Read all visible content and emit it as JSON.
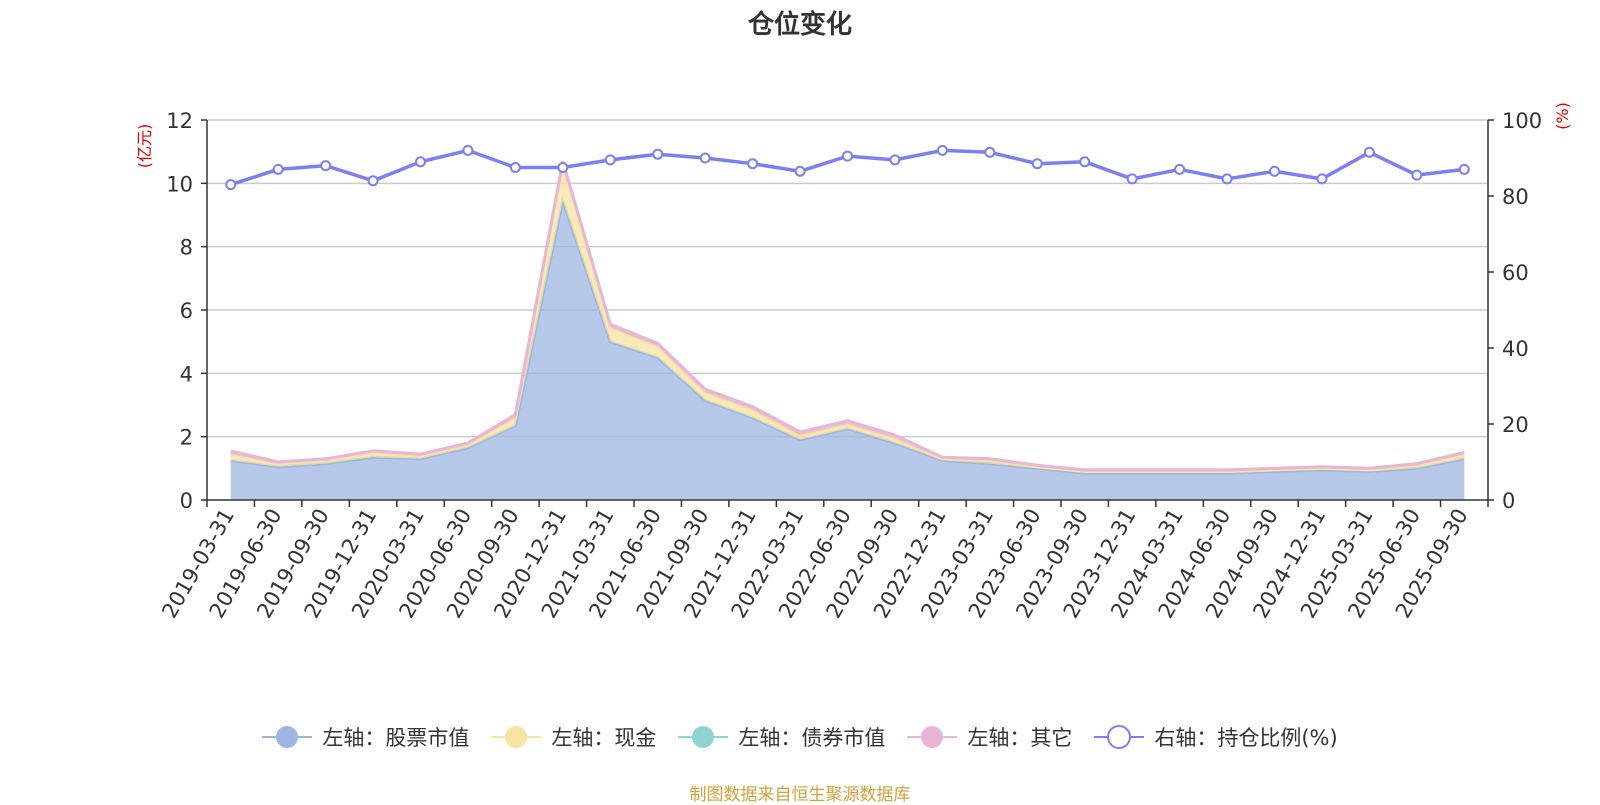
{
  "chart_data": {
    "type": "area",
    "title": "仓位变化",
    "source": "制图数据来自恒生聚源数据库",
    "left_axis": {
      "unit": "(亿元)",
      "ticks": [
        0,
        2,
        4,
        6,
        8,
        10,
        12
      ],
      "ylim": [
        0,
        12
      ]
    },
    "right_axis": {
      "unit": "(%)",
      "ticks": [
        0,
        20,
        40,
        60,
        80,
        100
      ],
      "ylim": [
        0,
        100
      ]
    },
    "categories": [
      "2019-03-31",
      "2019-06-30",
      "2019-09-30",
      "2019-12-31",
      "2020-03-31",
      "2020-06-30",
      "2020-09-30",
      "2020-12-31",
      "2021-03-31",
      "2021-06-30",
      "2021-09-30",
      "2021-12-31",
      "2022-03-31",
      "2022-06-30",
      "2022-09-30",
      "2022-12-31",
      "2023-03-31",
      "2023-06-30",
      "2023-09-30",
      "2023-12-31",
      "2024-03-31",
      "2024-06-30",
      "2024-09-30",
      "2024-12-31",
      "2025-03-31",
      "2025-06-30",
      "2025-09-30"
    ],
    "series": [
      {
        "name": "左轴：股票市值",
        "axis": "left",
        "color": "#9db5e0",
        "values": [
          1.25,
          1.05,
          1.15,
          1.35,
          1.3,
          1.65,
          2.35,
          9.45,
          5.0,
          4.5,
          3.15,
          2.6,
          1.9,
          2.25,
          1.8,
          1.25,
          1.15,
          1.0,
          0.85,
          0.85,
          0.85,
          0.85,
          0.9,
          0.95,
          0.9,
          1.0,
          1.3
        ]
      },
      {
        "name": "左轴：现金",
        "axis": "left",
        "color": "#f7e4a0",
        "values": [
          0.2,
          0.1,
          0.1,
          0.15,
          0.1,
          0.1,
          0.25,
          1.15,
          0.45,
          0.35,
          0.25,
          0.25,
          0.15,
          0.15,
          0.15,
          0.05,
          0.1,
          0.05,
          0.05,
          0.05,
          0.05,
          0.05,
          0.05,
          0.05,
          0.05,
          0.1,
          0.15
        ]
      },
      {
        "name": "左轴：债券市值",
        "axis": "left",
        "color": "#8fd3d3",
        "values": [
          0,
          0,
          0,
          0,
          0,
          0,
          0,
          0,
          0,
          0,
          0,
          0,
          0,
          0,
          0,
          0,
          0,
          0,
          0,
          0,
          0,
          0,
          0,
          0,
          0,
          0,
          0
        ]
      },
      {
        "name": "左轴：其它",
        "axis": "left",
        "color": "#e8b4d8",
        "values": [
          0.1,
          0.05,
          0.05,
          0.05,
          0.05,
          0.05,
          0.1,
          0.1,
          0.1,
          0.1,
          0.1,
          0.1,
          0.1,
          0.1,
          0.1,
          0.05,
          0.05,
          0.05,
          0.05,
          0.05,
          0.05,
          0.05,
          0.05,
          0.05,
          0.05,
          0.05,
          0.05
        ]
      },
      {
        "name": "右轴：持仓比例(%)",
        "axis": "right",
        "color": "#7b7ff0",
        "values": [
          83,
          87,
          88,
          84,
          89,
          92,
          87.5,
          87.5,
          89.5,
          91,
          90,
          88.5,
          86.5,
          90.5,
          89.5,
          92,
          91.5,
          88.5,
          89,
          84.5,
          87,
          84.5,
          86.5,
          84.5,
          91.5,
          85.5,
          87
        ]
      }
    ]
  }
}
